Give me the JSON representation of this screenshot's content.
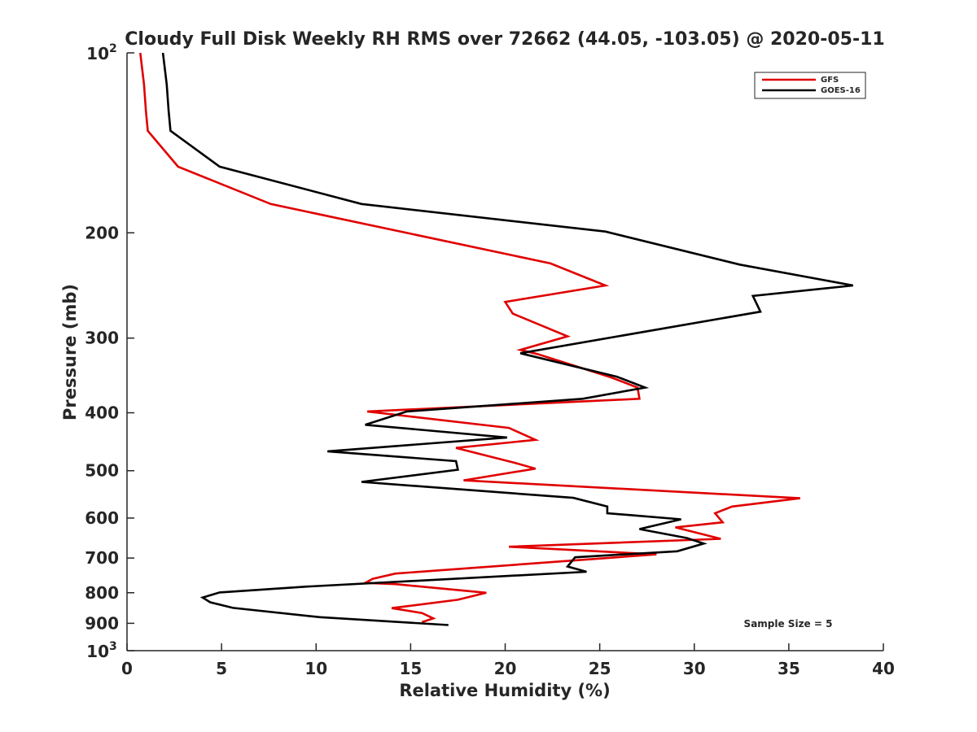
{
  "chart_data": {
    "type": "line",
    "title": "Cloudy Full Disk Weekly RH RMS over 72662 (44.05, -103.05) @ 2020-05-11",
    "xlabel": "Relative Humidity (%)",
    "ylabel": "Pressure (mb)",
    "xlim": [
      0,
      40
    ],
    "ylim": [
      100,
      1000
    ],
    "y_scale": "log",
    "y_reversed": true,
    "grid": false,
    "legend_location": "top-right",
    "x_ticks": [
      0,
      5,
      10,
      15,
      20,
      25,
      30,
      35,
      40
    ],
    "y_ticks": [
      {
        "value": 100,
        "base": "10",
        "exp": "2"
      },
      {
        "value": 200,
        "label": "200"
      },
      {
        "value": 300,
        "label": "300"
      },
      {
        "value": 400,
        "label": "400"
      },
      {
        "value": 500,
        "label": "500"
      },
      {
        "value": 600,
        "label": "600"
      },
      {
        "value": 700,
        "label": "700"
      },
      {
        "value": 800,
        "label": "800"
      },
      {
        "value": 900,
        "label": "900"
      },
      {
        "value": 1000,
        "base": "10",
        "exp": "3"
      }
    ],
    "series": [
      {
        "name": "GFS",
        "color": "#e00000",
        "points": [
          [
            0.7,
            100
          ],
          [
            0.9,
            113
          ],
          [
            1.0,
            125
          ],
          [
            1.1,
            135
          ],
          [
            2.7,
            155
          ],
          [
            7.6,
            179
          ],
          [
            22.4,
            225
          ],
          [
            25.3,
            245
          ],
          [
            20.0,
            261
          ],
          [
            20.4,
            273
          ],
          [
            23.3,
            298
          ],
          [
            20.8,
            314
          ],
          [
            21.7,
            319
          ],
          [
            25.6,
            349
          ],
          [
            27.0,
            363
          ],
          [
            27.1,
            379
          ],
          [
            12.7,
            398
          ],
          [
            20.2,
            424
          ],
          [
            21.6,
            444
          ],
          [
            17.4,
            458
          ],
          [
            20.5,
            485
          ],
          [
            21.6,
            496
          ],
          [
            17.8,
            519
          ],
          [
            35.6,
            556
          ],
          [
            32.0,
            574
          ],
          [
            31.1,
            589
          ],
          [
            31.5,
            610
          ],
          [
            29.0,
            622
          ],
          [
            31.4,
            650
          ],
          [
            20.2,
            670
          ],
          [
            28.0,
            690
          ],
          [
            14.2,
            743
          ],
          [
            13.0,
            758
          ],
          [
            12.6,
            770
          ],
          [
            14.2,
            774
          ],
          [
            19.0,
            800
          ],
          [
            17.5,
            822
          ],
          [
            14.0,
            849
          ],
          [
            15.6,
            865
          ],
          [
            16.2,
            883
          ],
          [
            15.6,
            896
          ]
        ]
      },
      {
        "name": "GOES-16",
        "color": "#000000",
        "points": [
          [
            1.9,
            100
          ],
          [
            2.1,
            113
          ],
          [
            2.2,
            125
          ],
          [
            2.3,
            135
          ],
          [
            4.9,
            155
          ],
          [
            12.4,
            179
          ],
          [
            25.3,
            199
          ],
          [
            32.4,
            226
          ],
          [
            38.4,
            245
          ],
          [
            33.1,
            255
          ],
          [
            33.5,
            271
          ],
          [
            20.8,
            318
          ],
          [
            25.9,
            348
          ],
          [
            27.4,
            363
          ],
          [
            24.1,
            379
          ],
          [
            14.8,
            398
          ],
          [
            12.6,
            419
          ],
          [
            20.1,
            440
          ],
          [
            10.6,
            464
          ],
          [
            17.4,
            482
          ],
          [
            17.5,
            498
          ],
          [
            12.4,
            522
          ],
          [
            23.6,
            555
          ],
          [
            25.4,
            574
          ],
          [
            25.4,
            589
          ],
          [
            29.3,
            603
          ],
          [
            27.1,
            626
          ],
          [
            29.6,
            648
          ],
          [
            30.5,
            662
          ],
          [
            29.1,
            682
          ],
          [
            23.7,
            698
          ],
          [
            23.3,
            723
          ],
          [
            24.3,
            738
          ],
          [
            9.6,
            781
          ],
          [
            4.9,
            799
          ],
          [
            4.0,
            815
          ],
          [
            4.4,
            830
          ],
          [
            5.6,
            848
          ],
          [
            10.2,
            879
          ],
          [
            17.0,
            906
          ]
        ]
      }
    ],
    "annotation": "Sample Size = 5"
  }
}
